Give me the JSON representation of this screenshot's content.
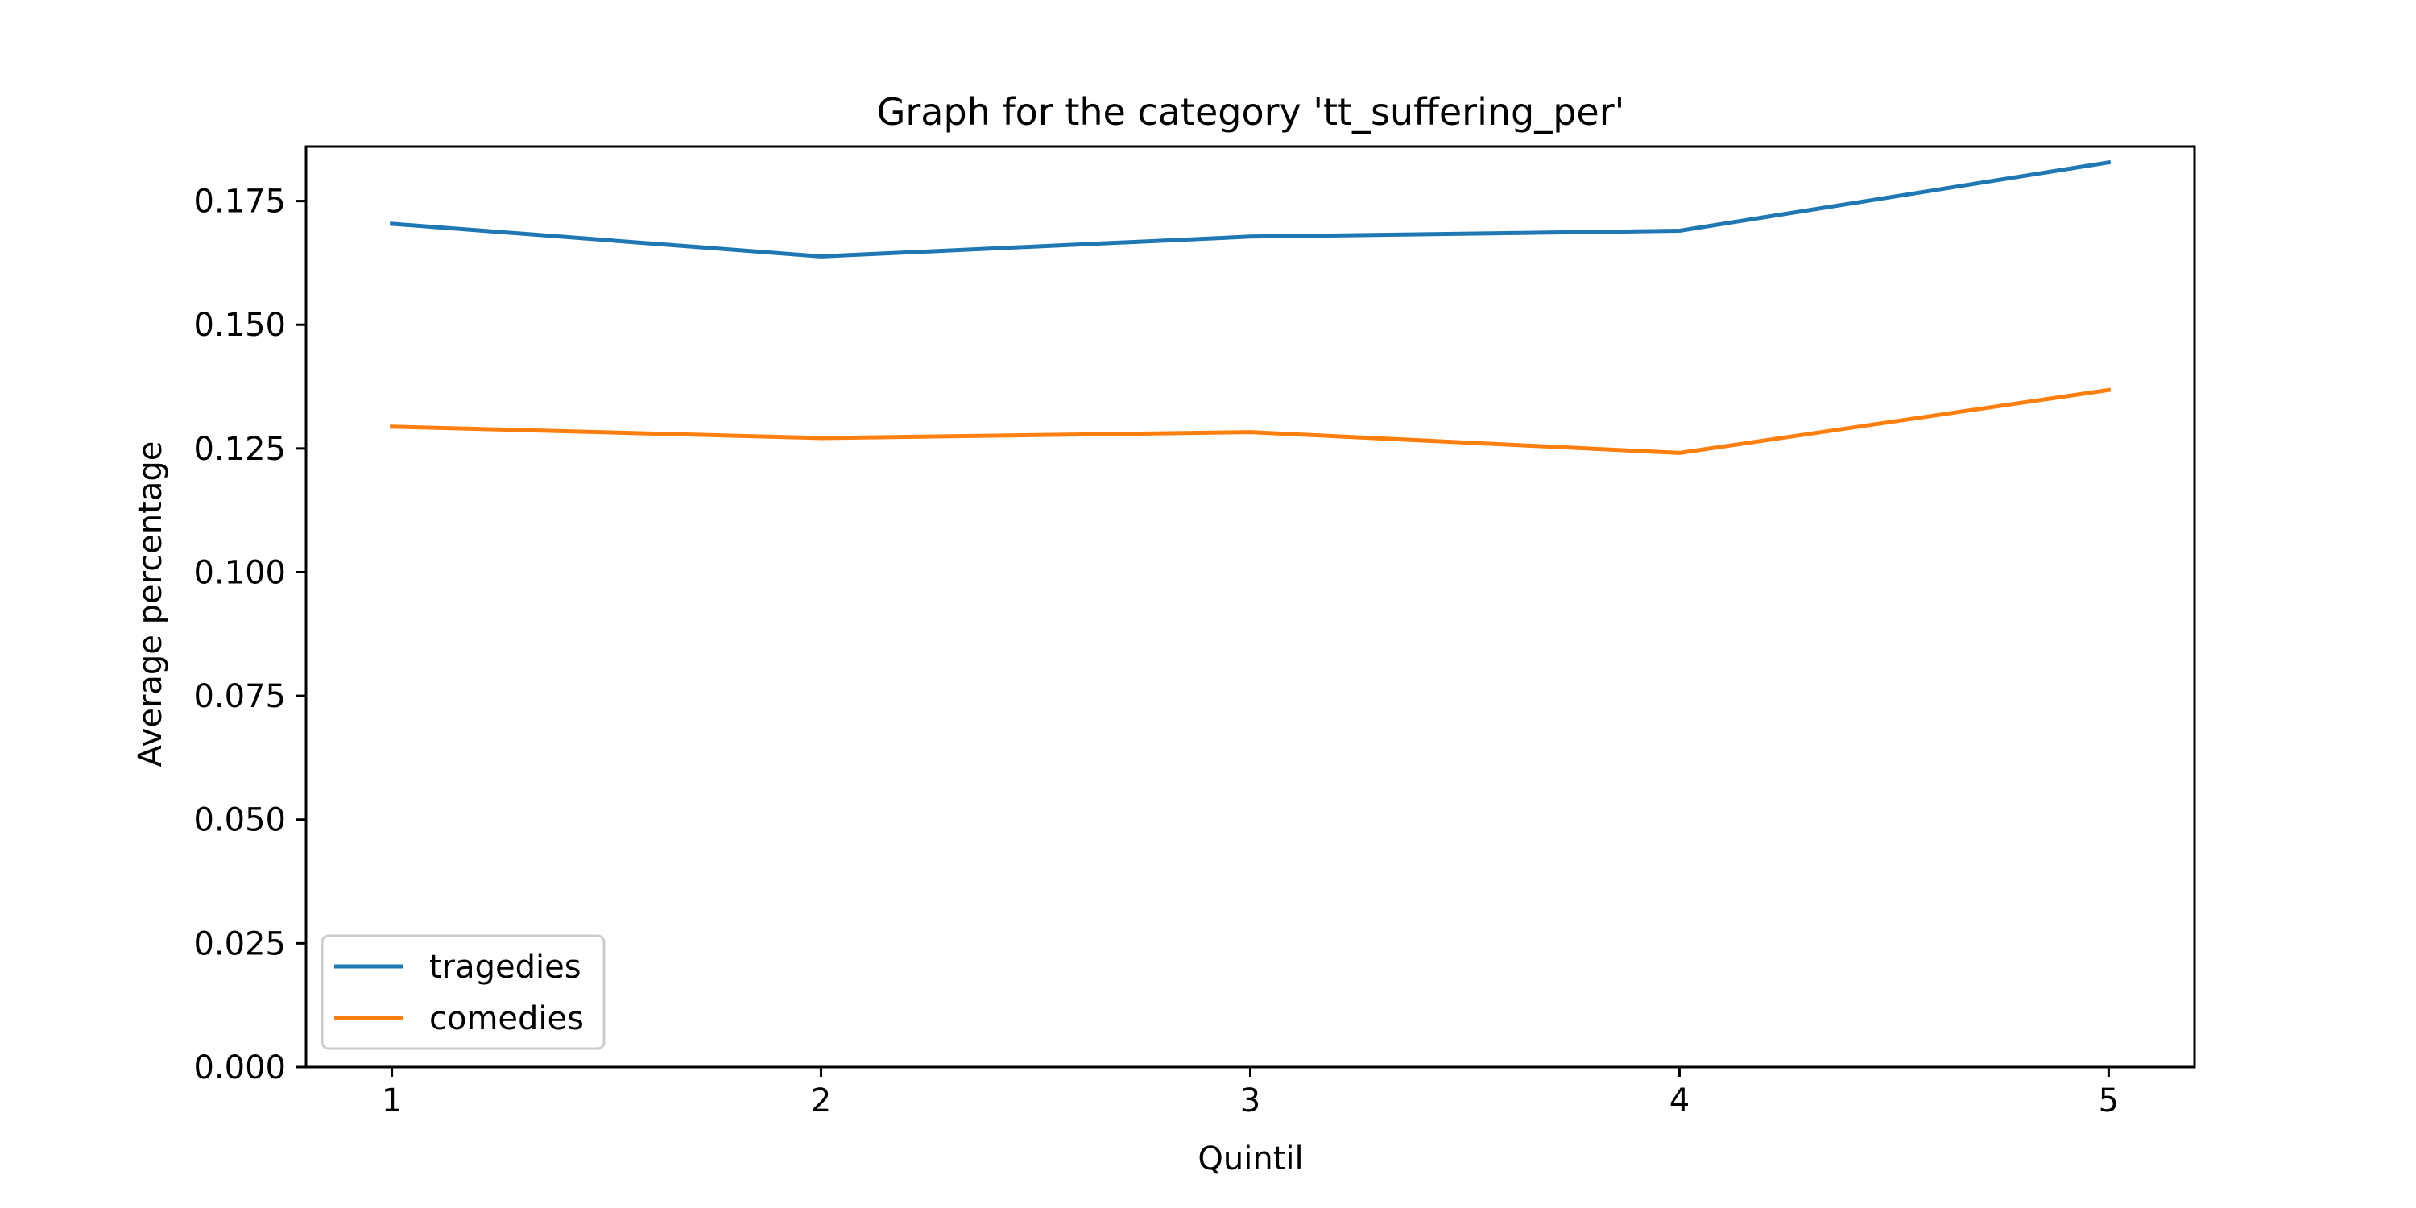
{
  "chart_data": {
    "type": "line",
    "title": "Graph for the category  'tt_suffering_per'",
    "xlabel": "Quintil",
    "ylabel": "Average percentage",
    "x": [
      1,
      2,
      3,
      4,
      5
    ],
    "x_ticks": [
      "1",
      "2",
      "3",
      "4",
      "5"
    ],
    "xlim": [
      0.8,
      5.2
    ],
    "ylim": [
      0.0,
      0.186
    ],
    "y_ticks": [
      "0.000",
      "0.025",
      "0.050",
      "0.075",
      "0.100",
      "0.125",
      "0.150",
      "0.175"
    ],
    "grid": false,
    "legend_position": "lower-left",
    "series": [
      {
        "name": "tragedies",
        "color": "#1f77b4",
        "values": [
          0.1704,
          0.1638,
          0.1678,
          0.169,
          0.1828
        ]
      },
      {
        "name": "comedies",
        "color": "#ff7f0e",
        "values": [
          0.1294,
          0.1271,
          0.1283,
          0.1241,
          0.1368
        ]
      }
    ]
  }
}
